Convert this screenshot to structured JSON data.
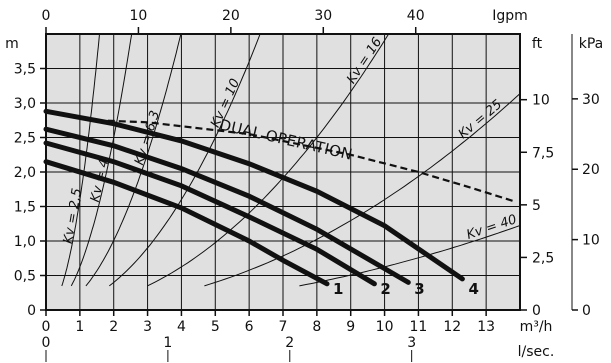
{
  "chart_data": {
    "type": "line",
    "title": "",
    "xlabel": "m³/h",
    "ylabel": "m",
    "xlim": [
      0,
      14
    ],
    "ylim": [
      0,
      4
    ],
    "grid": true,
    "background": "#e0e0e0",
    "axes": {
      "bottom": {
        "unit": "m³/h",
        "ticks": [
          "0",
          "1",
          "2",
          "3",
          "4",
          "5",
          "6",
          "7",
          "8",
          "9",
          "10",
          "11",
          "12",
          "13"
        ]
      },
      "bottom2": {
        "unit": "l/sec.",
        "ticks": [
          "0",
          "1",
          "2",
          "3"
        ],
        "tick_values_m3h": [
          0,
          3.6,
          7.2,
          10.8
        ]
      },
      "top": {
        "unit": "Igpm",
        "ticks": [
          "0",
          "10",
          "20",
          "30",
          "40"
        ],
        "tick_values_m3h": [
          0,
          2.73,
          5.46,
          8.19,
          10.92
        ]
      },
      "left": {
        "unit": "m",
        "ticks": [
          "0",
          "0,5",
          "1,0",
          "1,5",
          "2,0",
          "2,5",
          "3,0",
          "3,5"
        ],
        "tick_values": [
          0,
          0.5,
          1,
          1.5,
          2,
          2.5,
          3,
          3.5
        ]
      },
      "right_ft": {
        "unit": "ft",
        "ticks": [
          "0",
          "2,5",
          "5",
          "7,5",
          "10"
        ],
        "tick_values_m": [
          0,
          0.762,
          1.524,
          2.286,
          3.048
        ]
      },
      "right_kpa": {
        "unit": "kPa",
        "ticks": [
          "0",
          "10",
          "20",
          "30"
        ],
        "tick_values_m": [
          0,
          1.02,
          2.04,
          3.06
        ]
      }
    },
    "series": [
      {
        "name": "1",
        "x": [
          0,
          2,
          4,
          6,
          7,
          8.3
        ],
        "values": [
          2.15,
          1.85,
          1.48,
          1.0,
          0.72,
          0.38
        ]
      },
      {
        "name": "2",
        "x": [
          0,
          2,
          4,
          6,
          8,
          9.7
        ],
        "values": [
          2.42,
          2.15,
          1.8,
          1.35,
          0.88,
          0.38
        ]
      },
      {
        "name": "3",
        "x": [
          0,
          2,
          4,
          6,
          8,
          10.7
        ],
        "values": [
          2.62,
          2.38,
          2.05,
          1.65,
          1.17,
          0.4
        ]
      },
      {
        "name": "4",
        "x": [
          0,
          2,
          4,
          6,
          8,
          10,
          12.3
        ],
        "values": [
          2.88,
          2.7,
          2.45,
          2.12,
          1.72,
          1.22,
          0.45
        ]
      },
      {
        "name": "DUAL OPERATION",
        "style": "dashed",
        "x": [
          1.5,
          3,
          6,
          9,
          11,
          12.5,
          13.8
        ],
        "values": [
          2.75,
          2.72,
          2.55,
          2.25,
          2.0,
          1.78,
          1.58
        ]
      }
    ],
    "kv_curves": [
      {
        "label": "Kv = 2,5",
        "kv": 2.5
      },
      {
        "label": "Kv = 4",
        "kv": 4
      },
      {
        "label": "Kv = 6,3",
        "kv": 6.3
      },
      {
        "label": "Kv = 10",
        "kv": 10
      },
      {
        "label": "Kv = 16",
        "kv": 16
      },
      {
        "label": "Kv = 25",
        "kv": 25
      },
      {
        "label": "Kv = 40",
        "kv": 40
      }
    ]
  }
}
